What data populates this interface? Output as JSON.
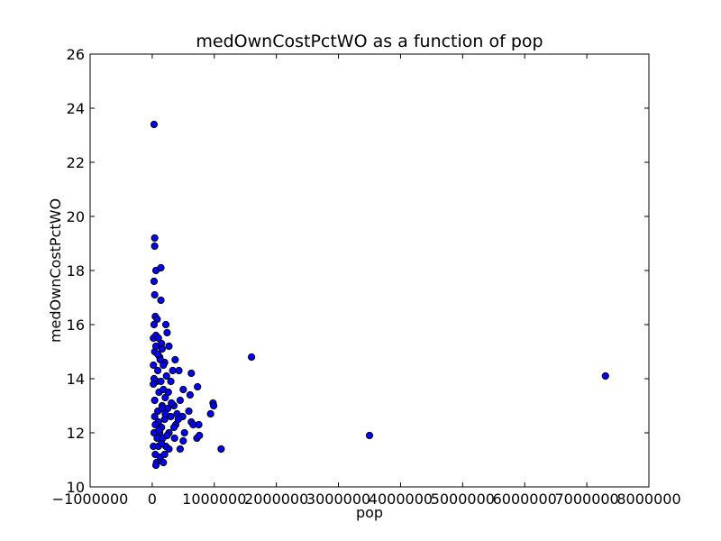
{
  "chart_data": {
    "type": "scatter",
    "title": "medOwnCostPctWO as a function of pop",
    "xlabel": "pop",
    "ylabel": "medOwnCostPctWO",
    "xlim": [
      -1000000,
      8000000
    ],
    "ylim": [
      10,
      26
    ],
    "xticks": [
      -1000000,
      0,
      1000000,
      2000000,
      3000000,
      4000000,
      5000000,
      6000000,
      7000000,
      8000000
    ],
    "xtick_labels": [
      "−1000000",
      "0",
      "1000000",
      "2000000",
      "3000000",
      "4000000",
      "5000000",
      "6000000",
      "7000000",
      "8000000"
    ],
    "yticks": [
      10,
      12,
      14,
      16,
      18,
      20,
      22,
      24,
      26
    ],
    "ytick_labels": [
      "10",
      "12",
      "14",
      "16",
      "18",
      "20",
      "22",
      "24",
      "26"
    ],
    "grid": false,
    "marker_color": "#0000ff",
    "points": [
      [
        30000,
        23.4
      ],
      [
        40000,
        19.2
      ],
      [
        40000,
        18.9
      ],
      [
        60000,
        18.0
      ],
      [
        140000,
        18.1
      ],
      [
        30000,
        17.6
      ],
      [
        40000,
        17.1
      ],
      [
        140000,
        16.9
      ],
      [
        50000,
        16.3
      ],
      [
        80000,
        16.2
      ],
      [
        30000,
        16.0
      ],
      [
        220000,
        16.0
      ],
      [
        240000,
        15.7
      ],
      [
        20000,
        15.5
      ],
      [
        60000,
        15.6
      ],
      [
        100000,
        15.5
      ],
      [
        150000,
        15.3
      ],
      [
        270000,
        15.2
      ],
      [
        40000,
        15.0
      ],
      [
        120000,
        14.8
      ],
      [
        160000,
        15.1
      ],
      [
        200000,
        14.6
      ],
      [
        1600000,
        14.8
      ],
      [
        7300000,
        14.1
      ],
      [
        20000,
        14.5
      ],
      [
        90000,
        14.3
      ],
      [
        180000,
        14.5
      ],
      [
        370000,
        14.7
      ],
      [
        330000,
        14.3
      ],
      [
        430000,
        14.3
      ],
      [
        630000,
        14.2
      ],
      [
        30000,
        14.0
      ],
      [
        70000,
        13.9
      ],
      [
        140000,
        13.9
      ],
      [
        300000,
        13.9
      ],
      [
        500000,
        13.6
      ],
      [
        610000,
        13.4
      ],
      [
        730000,
        13.7
      ],
      [
        260000,
        13.5
      ],
      [
        210000,
        13.3
      ],
      [
        110000,
        13.5
      ],
      [
        40000,
        13.2
      ],
      [
        160000,
        13.0
      ],
      [
        250000,
        12.9
      ],
      [
        350000,
        13.0
      ],
      [
        450000,
        13.2
      ],
      [
        980000,
        13.1
      ],
      [
        990000,
        13.0
      ],
      [
        590000,
        12.8
      ],
      [
        940000,
        12.7
      ],
      [
        400000,
        12.7
      ],
      [
        490000,
        12.6
      ],
      [
        300000,
        12.6
      ],
      [
        200000,
        12.5
      ],
      [
        100000,
        12.4
      ],
      [
        50000,
        12.3
      ],
      [
        150000,
        12.2
      ],
      [
        380000,
        12.3
      ],
      [
        630000,
        12.4
      ],
      [
        660000,
        12.3
      ],
      [
        750000,
        12.3
      ],
      [
        30000,
        12.0
      ],
      [
        120000,
        12.0
      ],
      [
        270000,
        12.0
      ],
      [
        520000,
        12.0
      ],
      [
        80000,
        11.8
      ],
      [
        170000,
        11.8
      ],
      [
        360000,
        11.8
      ],
      [
        720000,
        11.8
      ],
      [
        760000,
        11.9
      ],
      [
        3500000,
        11.9
      ],
      [
        20000,
        11.5
      ],
      [
        100000,
        11.5
      ],
      [
        220000,
        11.5
      ],
      [
        270000,
        11.4
      ],
      [
        450000,
        11.4
      ],
      [
        1110000,
        11.4
      ],
      [
        50000,
        11.2
      ],
      [
        130000,
        11.1
      ],
      [
        70000,
        10.9
      ],
      [
        180000,
        10.9
      ],
      [
        60000,
        10.8
      ],
      [
        150000,
        11.6
      ],
      [
        90000,
        12.8
      ],
      [
        210000,
        12.7
      ],
      [
        310000,
        13.1
      ],
      [
        420000,
        12.5
      ],
      [
        500000,
        11.7
      ],
      [
        230000,
        14.1
      ],
      [
        130000,
        14.7
      ],
      [
        60000,
        15.2
      ],
      [
        180000,
        13.6
      ],
      [
        90000,
        14.9
      ],
      [
        20000,
        13.8
      ],
      [
        110000,
        12.1
      ],
      [
        240000,
        11.9
      ],
      [
        40000,
        12.6
      ],
      [
        160000,
        12.9
      ],
      [
        350000,
        12.2
      ],
      [
        200000,
        11.2
      ]
    ]
  }
}
